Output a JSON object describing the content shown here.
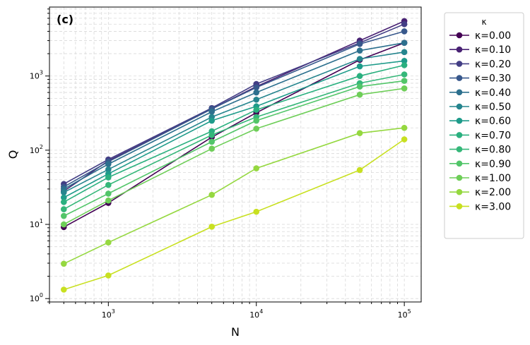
{
  "chart_data": {
    "type": "line",
    "panel_label": "(c)",
    "xlabel": "N",
    "ylabel": "Q",
    "x_scale": "log",
    "y_scale": "log",
    "xlim": [
      400,
      130000
    ],
    "ylim": [
      0.9,
      8500
    ],
    "x_ticks": [
      {
        "value": 1000,
        "base": "10",
        "exp": "3"
      },
      {
        "value": 10000,
        "base": "10",
        "exp": "4"
      },
      {
        "value": 100000,
        "base": "10",
        "exp": "5"
      }
    ],
    "y_ticks": [
      {
        "value": 1,
        "base": "10",
        "exp": "0"
      },
      {
        "value": 10,
        "base": "10",
        "exp": "1"
      },
      {
        "value": 100,
        "base": "10",
        "exp": "2"
      },
      {
        "value": 1000,
        "base": "10",
        "exp": "3"
      }
    ],
    "grid": true,
    "legend_title": "κ",
    "legend_position": "outside-right",
    "x": [
      500,
      1000,
      5000,
      10000,
      50000,
      100000
    ],
    "series": [
      {
        "name": "κ=0.00",
        "color": "#440154",
        "values": [
          9.2,
          19.5,
          150,
          320,
          1650,
          2800
        ]
      },
      {
        "name": "κ=0.10",
        "color": "#482173",
        "values": [
          28,
          72,
          360,
          720,
          3000,
          5500
        ]
      },
      {
        "name": "κ=0.20",
        "color": "#433e85",
        "values": [
          35,
          75,
          370,
          780,
          2800,
          5000
        ]
      },
      {
        "name": "κ=0.30",
        "color": "#38588c",
        "values": [
          32,
          70,
          360,
          700,
          2700,
          4000
        ]
      },
      {
        "name": "κ=0.40",
        "color": "#2d708e",
        "values": [
          30,
          65,
          330,
          600,
          2200,
          2800
        ]
      },
      {
        "name": "κ=0.50",
        "color": "#25858e",
        "values": [
          27,
          55,
          280,
          480,
          1700,
          2100
        ]
      },
      {
        "name": "κ=0.60",
        "color": "#1e9b8a",
        "values": [
          23,
          48,
          250,
          390,
          1350,
          1600
        ]
      },
      {
        "name": "κ=0.70",
        "color": "#2ab07f",
        "values": [
          20,
          43,
          180,
          350,
          1000,
          1400
        ]
      },
      {
        "name": "κ=0.80",
        "color": "#35b779",
        "values": [
          16,
          34,
          160,
          280,
          800,
          1050
        ]
      },
      {
        "name": "κ=0.90",
        "color": "#52c569",
        "values": [
          13,
          26,
          130,
          250,
          720,
          860
        ]
      },
      {
        "name": "κ=1.00",
        "color": "#6ece58",
        "values": [
          10,
          21,
          105,
          195,
          560,
          680
        ]
      },
      {
        "name": "κ=2.00",
        "color": "#95d840",
        "values": [
          2.95,
          5.7,
          25,
          57,
          170,
          200
        ]
      },
      {
        "name": "κ=3.00",
        "color": "#c8e020",
        "values": [
          1.32,
          2.05,
          9.3,
          14.8,
          54,
          140
        ]
      }
    ]
  }
}
